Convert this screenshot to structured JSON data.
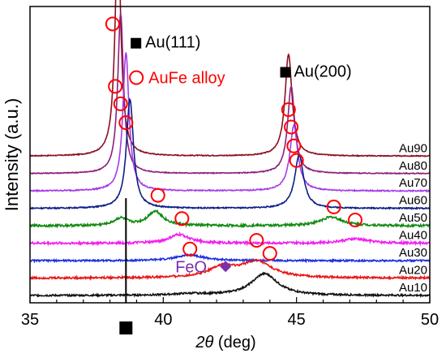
{
  "chart_data": {
    "type": "line",
    "xlabel": "2θ (deg)",
    "xlabel_parts": {
      "symbol": "2θ",
      "unit": " (deg)"
    },
    "ylabel": "Intensity (a.u.)",
    "xlim": [
      35,
      50
    ],
    "x_ticks": [
      35,
      40,
      45,
      50
    ],
    "grid": false,
    "y_axis_ticks": false,
    "series_labels_position": "right, above each trace",
    "reference_line": {
      "x": 38.6,
      "marker": "filled-square",
      "color": "#000000"
    },
    "colors": {
      "Au90": "#8b0f1f",
      "Au80": "#8c1f7c",
      "Au70": "#a63ce6",
      "Au60": "#0b1d87",
      "Au50": "#128a12",
      "Au40": "#f020f0",
      "Au30": "#1a2fe0",
      "Au20": "#e81818",
      "Au10": "#111111",
      "circle": "#ff0000",
      "feo": "#7b2fa8"
    },
    "series": [
      {
        "name": "Au90",
        "baseline": 0.89,
        "noise": 0.003,
        "peaks": [
          {
            "x": 38.3,
            "h": 1.55,
            "w": 0.13
          },
          {
            "x": 44.7,
            "h": 0.7,
            "w": 0.16
          }
        ]
      },
      {
        "name": "Au80",
        "baseline": 0.77,
        "noise": 0.003,
        "peaks": [
          {
            "x": 38.4,
            "h": 1.1,
            "w": 0.13
          },
          {
            "x": 44.8,
            "h": 0.6,
            "w": 0.16
          }
        ]
      },
      {
        "name": "Au70",
        "baseline": 0.65,
        "noise": 0.004,
        "peaks": [
          {
            "x": 38.6,
            "h": 0.95,
            "w": 0.14
          },
          {
            "x": 44.9,
            "h": 0.45,
            "w": 0.18
          }
        ]
      },
      {
        "name": "Au60",
        "baseline": 0.53,
        "noise": 0.004,
        "peaks": [
          {
            "x": 38.75,
            "h": 0.75,
            "w": 0.16
          },
          {
            "x": 45.1,
            "h": 0.37,
            "w": 0.2
          }
        ]
      },
      {
        "name": "Au50",
        "baseline": 0.41,
        "noise": 0.008,
        "peaks": [
          {
            "x": 39.7,
            "h": 0.1,
            "w": 0.35
          },
          {
            "x": 46.3,
            "h": 0.06,
            "w": 0.5
          },
          {
            "x": 38.4,
            "h": 0.05,
            "w": 0.3
          }
        ]
      },
      {
        "name": "Au40",
        "baseline": 0.29,
        "noise": 0.008,
        "peaks": [
          {
            "x": 40.6,
            "h": 0.06,
            "w": 0.45
          },
          {
            "x": 47.2,
            "h": 0.03,
            "w": 0.6
          }
        ]
      },
      {
        "name": "Au30",
        "baseline": 0.17,
        "noise": 0.006,
        "peaks": [
          {
            "x": 41.0,
            "h": 0.04,
            "w": 0.6
          }
        ]
      },
      {
        "name": "Au20",
        "baseline": 0.05,
        "noise": 0.007,
        "peaks": [
          {
            "x": 42.2,
            "h": 0.07,
            "w": 0.6
          },
          {
            "x": 43.5,
            "h": 0.11,
            "w": 0.7
          }
        ]
      },
      {
        "name": "Au10",
        "baseline": -0.07,
        "noise": 0.006,
        "peaks": [
          {
            "x": 41.0,
            "h": 0.01,
            "w": 0.8
          },
          {
            "x": 43.8,
            "h": 0.15,
            "w": 0.6
          }
        ]
      }
    ],
    "alloy_circles": [
      {
        "x": 38.1,
        "y": 1.8
      },
      {
        "x": 38.2,
        "y": 1.37
      },
      {
        "x": 38.4,
        "y": 1.25
      },
      {
        "x": 38.6,
        "y": 1.12
      },
      {
        "x": 39.8,
        "y": 0.62
      },
      {
        "x": 40.7,
        "y": 0.46
      },
      {
        "x": 41.0,
        "y": 0.25
      },
      {
        "x": 43.5,
        "y": 0.31
      },
      {
        "x": 44.0,
        "y": 0.22
      },
      {
        "x": 44.7,
        "y": 1.21
      },
      {
        "x": 44.8,
        "y": 1.09
      },
      {
        "x": 44.9,
        "y": 0.96
      },
      {
        "x": 45.0,
        "y": 0.86
      },
      {
        "x": 46.4,
        "y": 0.54
      },
      {
        "x": 47.2,
        "y": 0.45
      }
    ],
    "annotations": {
      "au111_label": "Au(111)",
      "au200_label": "Au(200)",
      "alloy_label": "AuFe alloy",
      "feo_label": "FeO"
    },
    "annotation_anchors": {
      "au111": {
        "x": 38.9,
        "y": 1.67
      },
      "au200": {
        "x": 44.6,
        "y": 1.47
      },
      "alloy": {
        "x": 38.9,
        "y": 1.43
      },
      "feo": {
        "x": 42.4,
        "y": 0.13
      }
    }
  }
}
